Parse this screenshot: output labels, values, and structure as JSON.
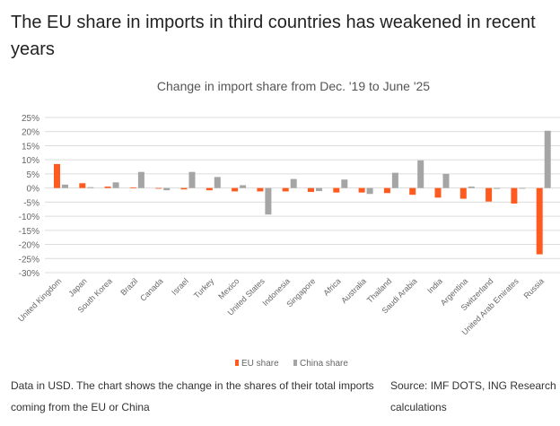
{
  "title": "The EU share in imports in third countries has weakened in recent years",
  "chart_data": {
    "type": "bar",
    "title": "Change in import share from Dec. '19 to June '25",
    "categories": [
      "United Kingdom",
      "Japan",
      "South Korea",
      "Brazil",
      "Canada",
      "Israel",
      "Turkey",
      "Mexico",
      "United States",
      "Indonesia",
      "Singapore",
      "Africa",
      "Australia",
      "Thailand",
      "Saudi Arabia",
      "India",
      "Argentina",
      "Switzerland",
      "United Arab Emirates",
      "Russia"
    ],
    "series": [
      {
        "name": "EU share",
        "color": "#ff5a1f",
        "values": [
          8.5,
          1.7,
          0.5,
          0.2,
          0,
          -0.5,
          -0.8,
          -1.2,
          -1.2,
          -1.2,
          -1.4,
          -1.6,
          -1.6,
          -1.8,
          -2.4,
          -3.4,
          -3.8,
          -4.8,
          -5.5,
          -23.5
        ]
      },
      {
        "name": "China share",
        "color": "#a5a5a5",
        "values": [
          1.2,
          0.3,
          2.0,
          5.7,
          -0.8,
          5.7,
          3.9,
          1.0,
          -9.4,
          3.2,
          -1.1,
          3.0,
          -2.1,
          5.4,
          9.8,
          5.0,
          0.5,
          -0.3,
          0,
          20.3
        ]
      }
    ],
    "ylim": [
      -30,
      25
    ],
    "yticks": [
      "25%",
      "20%",
      "15%",
      "10%",
      "5%",
      "0%",
      "-5%",
      "-10%",
      "-15%",
      "-20%",
      "-25%",
      "-30%"
    ],
    "grid": true,
    "legend": "bottom"
  },
  "caption_left": [
    "Data in USD. The chart shows the change in the shares of their total imports",
    "coming from the EU or China"
  ],
  "caption_right": [
    "Source: IMF DOTS, ING Research",
    "calculations"
  ]
}
